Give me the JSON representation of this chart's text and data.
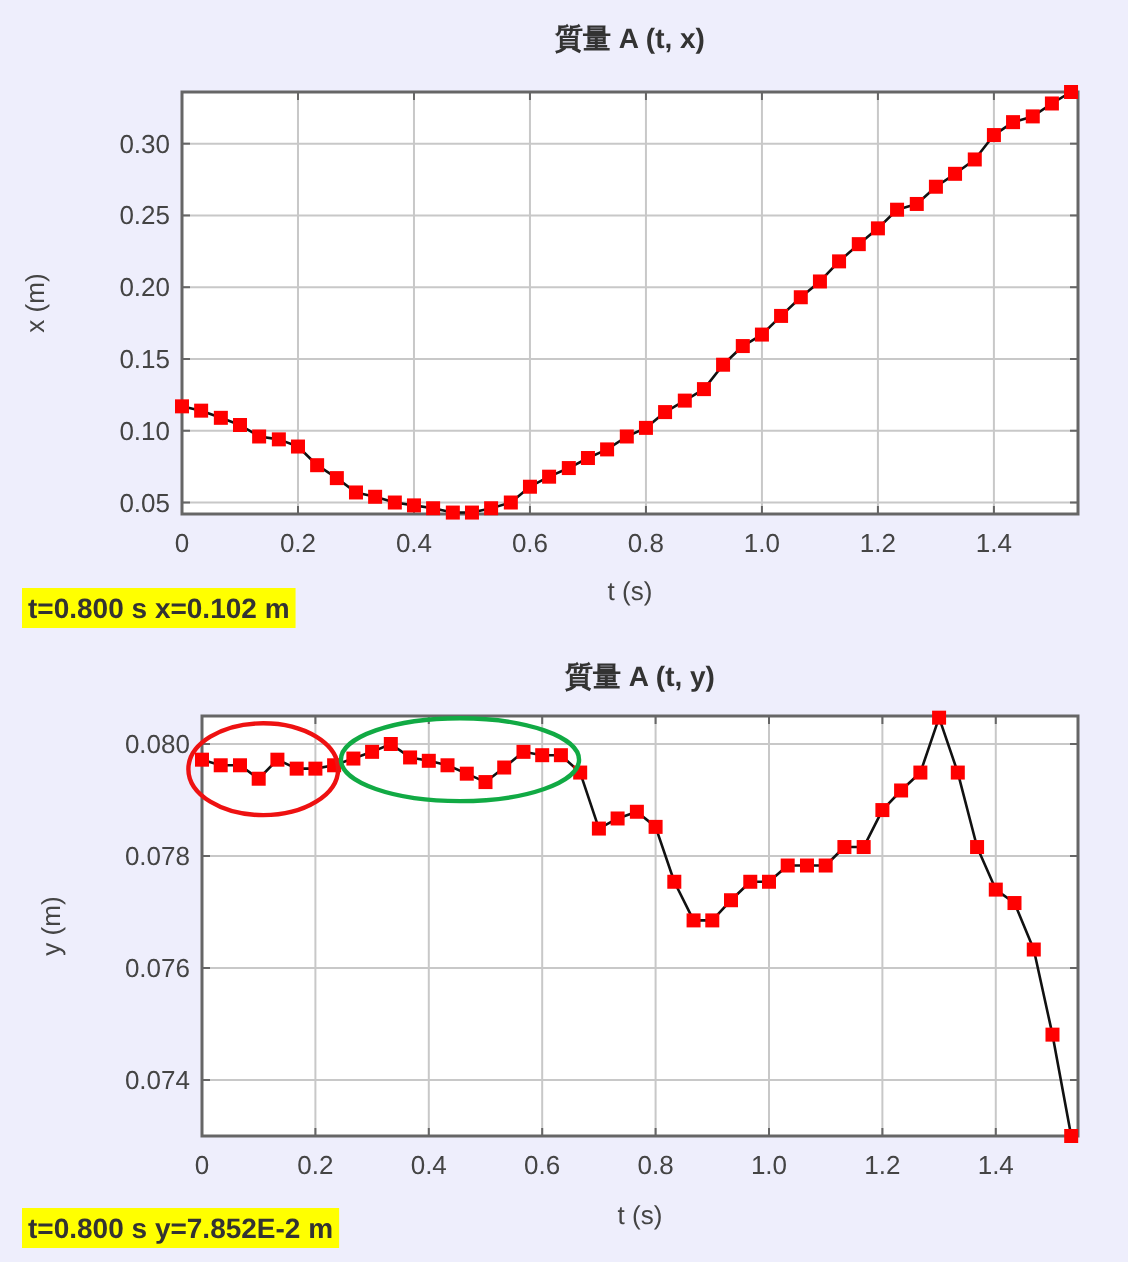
{
  "chart_data": [
    {
      "type": "line",
      "title": "質量 A (t, x)",
      "xlabel": "t (s)",
      "ylabel": "x (m)",
      "marker": "square",
      "grid": true,
      "line_style": "solid",
      "x": [
        0,
        0.033,
        0.067,
        0.1,
        0.133,
        0.167,
        0.2,
        0.233,
        0.267,
        0.3,
        0.333,
        0.367,
        0.4,
        0.433,
        0.467,
        0.5,
        0.533,
        0.567,
        0.6,
        0.633,
        0.667,
        0.7,
        0.733,
        0.767,
        0.8,
        0.833,
        0.867,
        0.9,
        0.933,
        0.967,
        1.0,
        1.033,
        1.067,
        1.1,
        1.133,
        1.167,
        1.2,
        1.233,
        1.267,
        1.3,
        1.333,
        1.367,
        1.4,
        1.433,
        1.467,
        1.5,
        1.533
      ],
      "series": [
        {
          "color": "#ff0000",
          "values": [
            0.117,
            0.114,
            0.109,
            0.104,
            0.096,
            0.094,
            0.089,
            0.076,
            0.067,
            0.057,
            0.054,
            0.05,
            0.048,
            0.046,
            0.043,
            0.043,
            0.046,
            0.05,
            0.061,
            0.068,
            0.074,
            0.081,
            0.087,
            0.096,
            0.102,
            0.113,
            0.121,
            0.129,
            0.146,
            0.159,
            0.167,
            0.18,
            0.193,
            0.204,
            0.218,
            0.23,
            0.241,
            0.254,
            0.258,
            0.27,
            0.279,
            0.289,
            0.306,
            0.315,
            0.319,
            0.328,
            0.336
          ]
        }
      ],
      "xlim": [
        0,
        1.545
      ],
      "ylim": [
        0.042,
        0.336
      ],
      "xticks": [
        0,
        0.2,
        0.4,
        0.6,
        0.8,
        {
          "value": 1,
          "label": "1.0"
        },
        1.2,
        1.4
      ],
      "yticks": [
        0.05,
        {
          "value": 0.1,
          "label": "0.10"
        },
        0.15,
        {
          "value": 0.2,
          "label": "0.20"
        },
        0.25,
        {
          "value": 0.3,
          "label": "0.30"
        }
      ],
      "annotations": [
        "t=0.800 s  x=0.102 m"
      ]
    },
    {
      "type": "line",
      "title": "質量 A (t, y)",
      "xlabel": "t (s)",
      "ylabel": "y (m)",
      "marker": "square",
      "grid": true,
      "line_style": "solid",
      "x": [
        0,
        0.033,
        0.067,
        0.1,
        0.133,
        0.167,
        0.2,
        0.233,
        0.267,
        0.3,
        0.333,
        0.367,
        0.4,
        0.433,
        0.467,
        0.5,
        0.533,
        0.567,
        0.6,
        0.633,
        0.667,
        0.7,
        0.733,
        0.767,
        0.8,
        0.833,
        0.867,
        0.9,
        0.933,
        0.967,
        1.0,
        1.033,
        1.067,
        1.1,
        1.133,
        1.167,
        1.2,
        1.233,
        1.267,
        1.3,
        1.333,
        1.367,
        1.4,
        1.433,
        1.467,
        1.5,
        1.533
      ],
      "series": [
        {
          "color": "#ff0000",
          "values": [
            0.07972,
            0.07962,
            0.07962,
            0.07938,
            0.07972,
            0.07956,
            0.07956,
            0.07962,
            0.07974,
            0.07986,
            0.08,
            0.07976,
            0.0797,
            0.07962,
            0.07947,
            0.07932,
            0.07958,
            0.07986,
            0.0798,
            0.0798,
            0.07949,
            0.07849,
            0.07867,
            0.07879,
            0.07852,
            0.07754,
            0.07685,
            0.07685,
            0.07721,
            0.07754,
            0.07754,
            0.07783,
            0.07783,
            0.07783,
            0.07816,
            0.07816,
            0.07882,
            0.07917,
            0.07949,
            0.08047,
            0.07949,
            0.07816,
            0.0774,
            0.07716,
            0.07633,
            0.07481,
            0.073
          ]
        }
      ],
      "xlim": [
        0,
        1.545
      ],
      "ylim": [
        0.073,
        0.0805
      ],
      "xticks": [
        0,
        0.2,
        0.4,
        0.6,
        0.8,
        {
          "value": 1,
          "label": "1.0"
        },
        1.2,
        1.4
      ],
      "yticks": [
        0.074,
        0.076,
        0.078,
        {
          "value": 0.08,
          "label": "0.080"
        }
      ],
      "annotations": [
        "t=0.800 s  y=7.852E-2 m"
      ]
    }
  ]
}
